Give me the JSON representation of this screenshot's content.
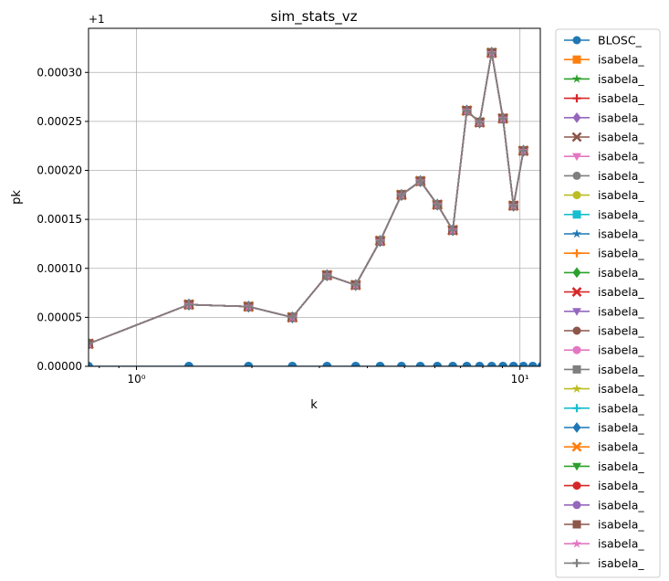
{
  "chart_data": {
    "type": "line",
    "title": "sim_stats_vz",
    "xlabel": "k",
    "ylabel": "pk",
    "xscale": "log",
    "xlim": [
      0.75,
      11.3
    ],
    "ylim": [
      0.0,
      0.000345
    ],
    "y_offset_label": "+1",
    "grid": true,
    "legend_position": "outside right",
    "x_ticks": [
      {
        "value": 1,
        "label": "10⁰"
      },
      {
        "value": 10,
        "label": "10¹"
      }
    ],
    "y_ticks": [
      {
        "value": 0.0,
        "label": "0.00000"
      },
      {
        "value": 5e-05,
        "label": "0.00005"
      },
      {
        "value": 0.0001,
        "label": "0.00010"
      },
      {
        "value": 0.00015,
        "label": "0.00015"
      },
      {
        "value": 0.0002,
        "label": "0.00020"
      },
      {
        "value": 0.00025,
        "label": "0.00025"
      },
      {
        "value": 0.0003,
        "label": "0.00030"
      }
    ],
    "x": [
      0.75,
      1.37,
      1.96,
      2.55,
      3.14,
      3.73,
      4.32,
      4.91,
      5.5,
      6.09,
      6.68,
      7.27,
      7.85,
      8.44,
      9.03,
      9.62,
      10.21,
      10.8,
      11.4
    ],
    "series": [
      {
        "name": "BLOSC_",
        "color": "#1f77b4",
        "marker": "circle",
        "values": [
          0,
          0,
          0,
          0,
          0,
          0,
          0,
          0,
          0,
          0,
          0,
          0,
          0,
          0,
          0,
          0,
          0,
          0,
          0
        ]
      },
      {
        "name": "isabela_",
        "color": "#ff7f0e",
        "marker": "square",
        "values": "shared_isabela"
      },
      {
        "name": "isabela_",
        "color": "#2ca02c",
        "marker": "star",
        "values": "shared_isabela"
      },
      {
        "name": "isabela_",
        "color": "#d62728",
        "marker": "plus",
        "values": "shared_isabela"
      },
      {
        "name": "isabela_",
        "color": "#9467bd",
        "marker": "diamond",
        "values": "shared_isabela"
      },
      {
        "name": "isabela_",
        "color": "#8c564b",
        "marker": "x",
        "values": "shared_isabela"
      },
      {
        "name": "isabela_",
        "color": "#e377c2",
        "marker": "triangle-down",
        "values": "shared_isabela"
      },
      {
        "name": "isabela_",
        "color": "#7f7f7f",
        "marker": "circle",
        "values": "shared_isabela"
      },
      {
        "name": "isabela_",
        "color": "#bcbd22",
        "marker": "circle",
        "values": "shared_isabela"
      },
      {
        "name": "isabela_",
        "color": "#17becf",
        "marker": "square",
        "values": "shared_isabela"
      },
      {
        "name": "isabela_",
        "color": "#1f77b4",
        "marker": "star",
        "values": "shared_isabela"
      },
      {
        "name": "isabela_",
        "color": "#ff7f0e",
        "marker": "plus",
        "values": "shared_isabela"
      },
      {
        "name": "isabela_",
        "color": "#2ca02c",
        "marker": "diamond",
        "values": "shared_isabela"
      },
      {
        "name": "isabela_",
        "color": "#d62728",
        "marker": "x",
        "values": "shared_isabela"
      },
      {
        "name": "isabela_",
        "color": "#9467bd",
        "marker": "triangle-down",
        "values": "shared_isabela"
      },
      {
        "name": "isabela_",
        "color": "#8c564b",
        "marker": "circle",
        "values": "shared_isabela"
      },
      {
        "name": "isabela_",
        "color": "#e377c2",
        "marker": "circle",
        "values": "shared_isabela"
      },
      {
        "name": "isabela_",
        "color": "#7f7f7f",
        "marker": "square",
        "values": "shared_isabela"
      },
      {
        "name": "isabela_",
        "color": "#bcbd22",
        "marker": "star",
        "values": "shared_isabela"
      },
      {
        "name": "isabela_",
        "color": "#17becf",
        "marker": "plus",
        "values": "shared_isabela"
      },
      {
        "name": "isabela_",
        "color": "#1f77b4",
        "marker": "diamond",
        "values": "shared_isabela"
      },
      {
        "name": "isabela_",
        "color": "#ff7f0e",
        "marker": "x",
        "values": "shared_isabela"
      },
      {
        "name": "isabela_",
        "color": "#2ca02c",
        "marker": "triangle-down",
        "values": "shared_isabela"
      },
      {
        "name": "isabela_",
        "color": "#d62728",
        "marker": "circle",
        "values": "shared_isabela"
      },
      {
        "name": "isabela_",
        "color": "#9467bd",
        "marker": "circle",
        "values": "shared_isabela"
      },
      {
        "name": "isabela_",
        "color": "#8c564b",
        "marker": "square",
        "values": "shared_isabela"
      },
      {
        "name": "isabela_",
        "color": "#e377c2",
        "marker": "star",
        "values": "shared_isabela"
      },
      {
        "name": "isabela_",
        "color": "#7f7f7f",
        "marker": "plus",
        "values": "shared_isabela"
      }
    ],
    "shared_isabela": [
      2.3e-05,
      6.3e-05,
      6.1e-05,
      5e-05,
      9.3e-05,
      8.3e-05,
      0.000128,
      0.000175,
      0.000189,
      0.000165,
      0.000139,
      0.000261,
      0.000249,
      0.00032,
      0.000253,
      0.000164,
      0.00022,
      null,
      null
    ]
  }
}
